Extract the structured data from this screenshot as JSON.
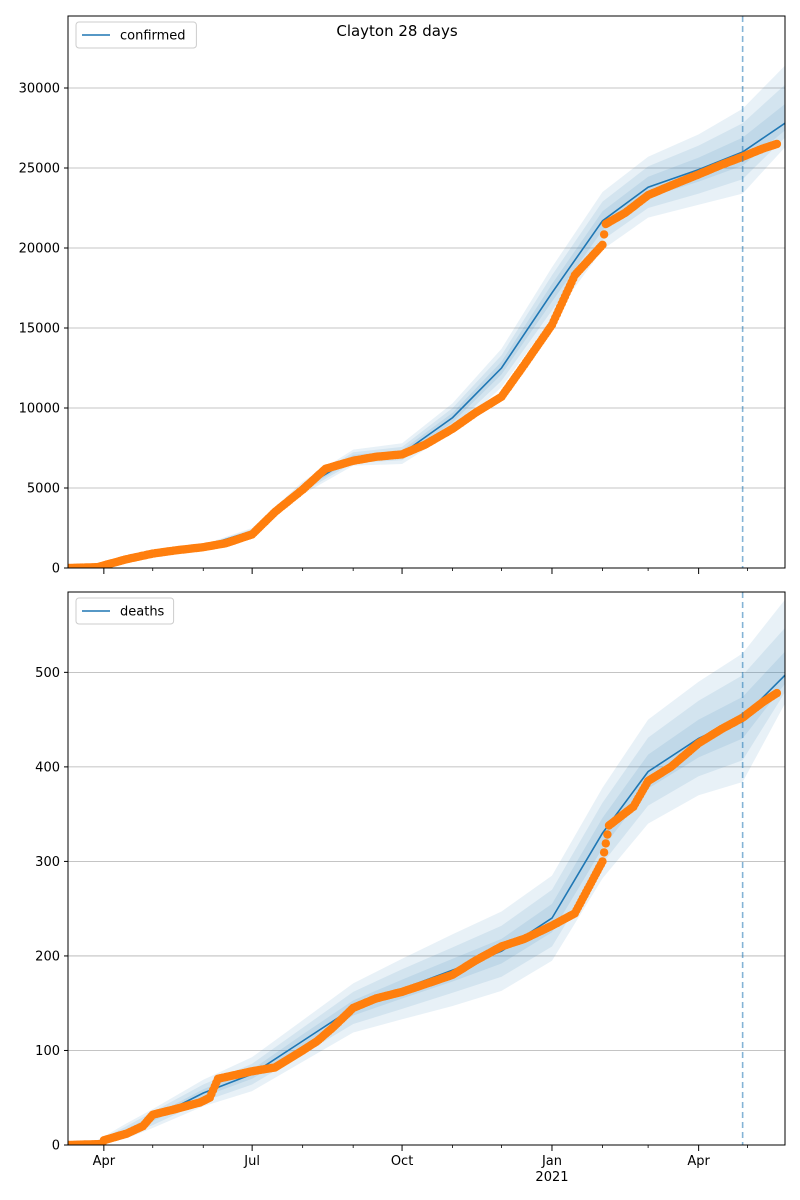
{
  "title": "Clayton 28 days",
  "colors": {
    "model": "#1f77b4",
    "observed": "#ff7f0e",
    "band": "#1f77b4",
    "grid": "#b0b0b0",
    "vline": "#1f77b4"
  },
  "chart_data": [
    {
      "type": "line",
      "legend": "confirmed",
      "legend_position": "top-left",
      "grid": "y",
      "xlim": [
        "2020-03-10",
        "2021-05-24"
      ],
      "ylim": [
        0,
        34500
      ],
      "yticks": [
        0,
        5000,
        10000,
        15000,
        20000,
        25000,
        30000
      ],
      "forecast_start": "2021-04-28",
      "model": {
        "x": [
          "2020-03-10",
          "2020-04-01",
          "2020-05-01",
          "2020-06-01",
          "2020-07-01",
          "2020-08-01",
          "2020-09-01",
          "2020-10-01",
          "2020-11-01",
          "2020-12-01",
          "2021-01-01",
          "2021-02-01",
          "2021-03-01",
          "2021-04-01",
          "2021-04-28",
          "2021-05-24"
        ],
        "y": [
          0,
          300,
          850,
          1350,
          2300,
          5000,
          6900,
          7150,
          9400,
          12500,
          17200,
          21700,
          23800,
          24900,
          26000,
          27800
        ],
        "bands": [
          {
            "lower_off": [
              0,
              50,
              80,
              120,
              200,
              400,
              500,
              650,
              900,
              1200,
              1600,
              1800,
              1900,
              2200,
              2600,
              1500
            ],
            "upper_off": [
              0,
              50,
              80,
              120,
              200,
              400,
              500,
              650,
              900,
              1200,
              1600,
              1800,
              1900,
              2200,
              2700,
              3600
            ]
          },
          {
            "lower_off": [
              0,
              30,
              50,
              80,
              120,
              250,
              330,
              420,
              600,
              800,
              1100,
              1200,
              1300,
              1500,
              1700,
              900
            ],
            "upper_off": [
              0,
              30,
              50,
              80,
              120,
              250,
              330,
              420,
              600,
              800,
              1100,
              1200,
              1300,
              1500,
              1800,
              2400
            ]
          },
          {
            "lower_off": [
              0,
              15,
              25,
              40,
              60,
              130,
              170,
              220,
              300,
              400,
              550,
              600,
              650,
              750,
              850,
              450
            ],
            "upper_off": [
              0,
              15,
              25,
              40,
              60,
              130,
              170,
              220,
              300,
              400,
              550,
              600,
              650,
              750,
              900,
              1200
            ]
          }
        ]
      },
      "observed": {
        "x": [
          "2020-03-10",
          "2020-03-28",
          "2020-04-15",
          "2020-05-01",
          "2020-05-15",
          "2020-06-01",
          "2020-06-15",
          "2020-07-01",
          "2020-07-15",
          "2020-08-01",
          "2020-08-15",
          "2020-09-01",
          "2020-09-15",
          "2020-10-01",
          "2020-10-15",
          "2020-11-01",
          "2020-11-15",
          "2020-12-01",
          "2020-12-15",
          "2021-01-01",
          "2021-01-15",
          "2021-02-01",
          "2021-02-03",
          "2021-02-15",
          "2021-03-01",
          "2021-03-15",
          "2021-04-01",
          "2021-04-15",
          "2021-04-28",
          "2021-05-10",
          "2021-05-19"
        ],
        "y": [
          0,
          50,
          550,
          900,
          1100,
          1300,
          1550,
          2100,
          3500,
          4900,
          6200,
          6700,
          6950,
          7100,
          7700,
          8700,
          9700,
          10700,
          12700,
          15200,
          18300,
          20200,
          21500,
          22200,
          23300,
          23900,
          24600,
          25200,
          25700,
          26200,
          26500
        ]
      }
    },
    {
      "type": "line",
      "legend": "deaths",
      "legend_position": "top-left",
      "grid": "y",
      "xlim": [
        "2020-03-10",
        "2021-05-24"
      ],
      "ylim": [
        0,
        585
      ],
      "yticks": [
        0,
        100,
        200,
        300,
        400,
        500
      ],
      "forecast_start": "2021-04-28",
      "model": {
        "x": [
          "2020-03-10",
          "2020-03-28",
          "2020-04-15",
          "2020-05-01",
          "2020-06-01",
          "2020-07-01",
          "2020-08-01",
          "2020-09-01",
          "2020-10-01",
          "2020-11-01",
          "2020-12-01",
          "2021-01-01",
          "2021-02-01",
          "2021-03-01",
          "2021-04-01",
          "2021-04-28",
          "2021-05-24"
        ],
        "y": [
          0,
          2,
          15,
          28,
          55,
          75,
          110,
          145,
          165,
          185,
          205,
          240,
          330,
          395,
          430,
          452,
          497
        ],
        "bands": [
          {
            "lower_off": [
              0,
              3,
              8,
              10,
              14,
              18,
              22,
              26,
              32,
              38,
              42,
              45,
              48,
              55,
              60,
              68,
              30
            ],
            "upper_off": [
              0,
              3,
              8,
              10,
              14,
              18,
              22,
              26,
              32,
              38,
              42,
              45,
              48,
              55,
              60,
              68,
              80
            ]
          },
          {
            "lower_off": [
              0,
              2,
              5,
              7,
              9,
              11,
              14,
              17,
              21,
              24,
              27,
              30,
              32,
              36,
              40,
              45,
              18
            ],
            "upper_off": [
              0,
              2,
              5,
              7,
              9,
              11,
              14,
              17,
              21,
              24,
              27,
              30,
              32,
              36,
              40,
              45,
              50
            ]
          },
          {
            "lower_off": [
              0,
              1,
              2,
              3,
              4,
              5,
              7,
              8,
              10,
              12,
              13,
              15,
              16,
              18,
              20,
              22,
              9
            ],
            "upper_off": [
              0,
              1,
              2,
              3,
              4,
              5,
              7,
              8,
              10,
              12,
              13,
              15,
              16,
              18,
              20,
              22,
              25
            ]
          }
        ]
      },
      "observed": {
        "x": [
          "2020-03-10",
          "2020-03-31",
          "2020-04-01",
          "2020-04-15",
          "2020-04-25",
          "2020-05-01",
          "2020-05-15",
          "2020-05-30",
          "2020-06-05",
          "2020-06-10",
          "2020-07-01",
          "2020-07-15",
          "2020-08-01",
          "2020-08-10",
          "2020-08-20",
          "2020-09-01",
          "2020-09-15",
          "2020-10-01",
          "2020-10-15",
          "2020-11-01",
          "2020-11-15",
          "2020-12-01",
          "2020-12-15",
          "2021-01-01",
          "2021-01-15",
          "2021-02-01",
          "2021-02-05",
          "2021-02-20",
          "2021-03-01",
          "2021-03-15",
          "2021-04-01",
          "2021-04-15",
          "2021-04-28",
          "2021-05-10",
          "2021-05-19"
        ],
        "y": [
          0,
          1,
          5,
          12,
          20,
          32,
          38,
          45,
          50,
          70,
          78,
          82,
          100,
          110,
          125,
          145,
          155,
          162,
          170,
          180,
          195,
          210,
          218,
          232,
          245,
          300,
          338,
          358,
          385,
          400,
          425,
          440,
          452,
          468,
          478
        ]
      }
    }
  ],
  "x_axis": {
    "ticks": [
      {
        "date": "2020-04-01",
        "label": "Apr"
      },
      {
        "date": "2020-07-01",
        "label": "Jul"
      },
      {
        "date": "2020-10-01",
        "label": "Oct"
      },
      {
        "date": "2021-01-01",
        "label": "Jan"
      },
      {
        "date": "2021-04-01",
        "label": "Apr"
      }
    ],
    "year_label": {
      "date": "2021-01-01",
      "label": "2021"
    },
    "minor_ticks": [
      "2020-05-01",
      "2020-06-01",
      "2020-08-01",
      "2020-09-01",
      "2020-11-01",
      "2020-12-01",
      "2021-02-01",
      "2021-03-01",
      "2021-05-01"
    ]
  }
}
